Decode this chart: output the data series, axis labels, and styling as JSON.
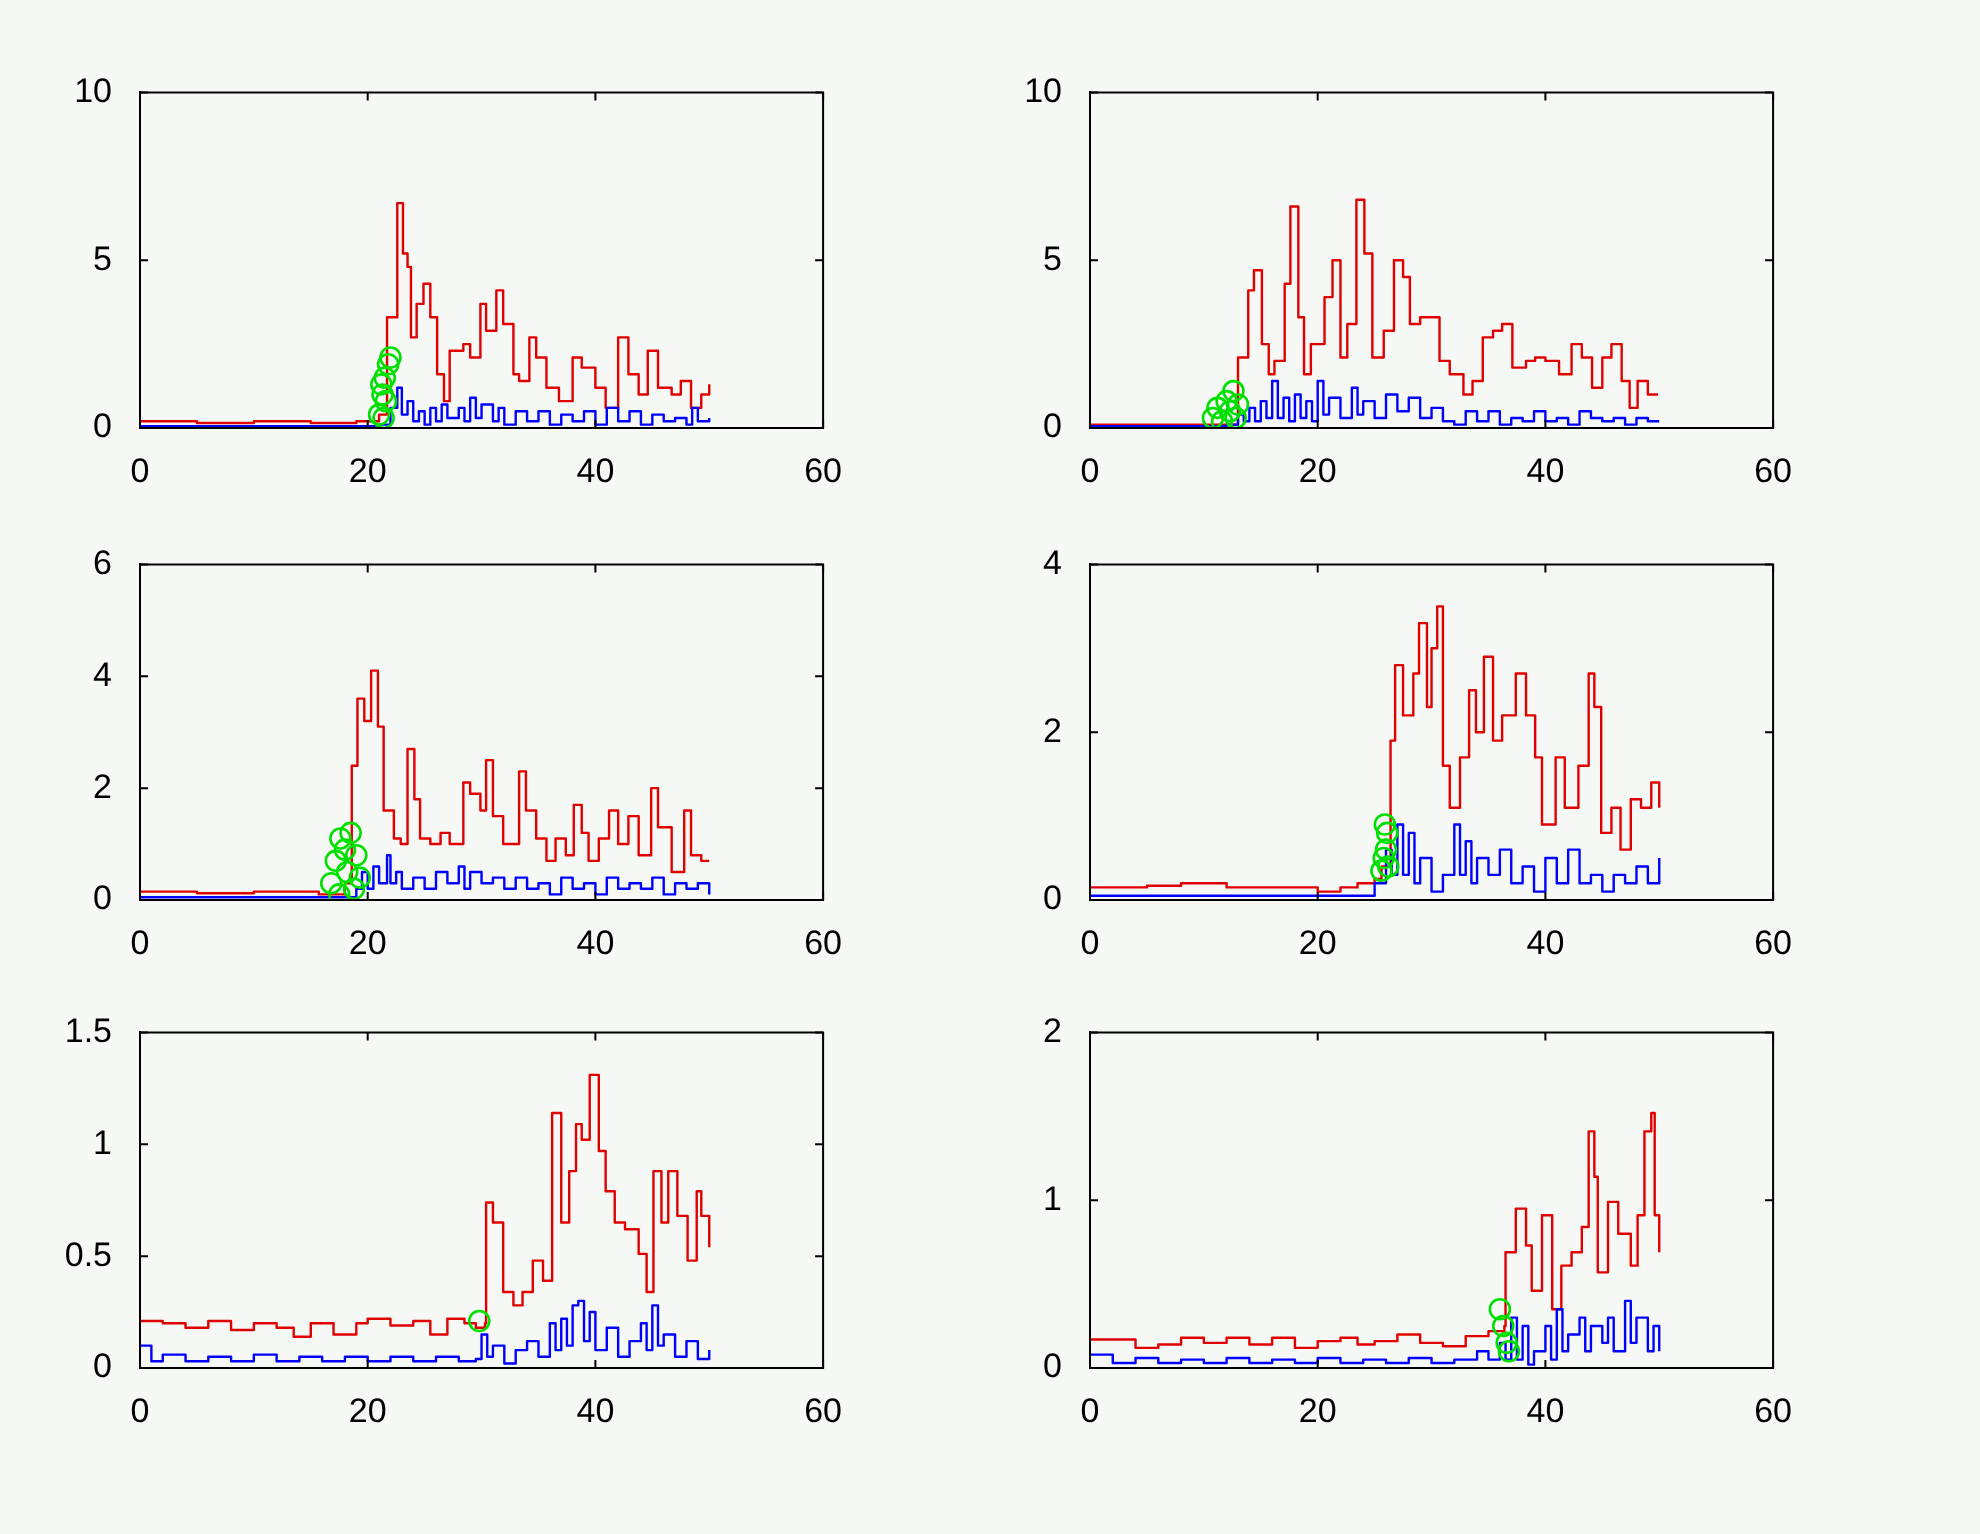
{
  "chart_data": [
    {
      "type": "step",
      "xlim": [
        0,
        60
      ],
      "xticks": [
        0,
        20,
        40,
        60
      ],
      "ylim": [
        0,
        10
      ],
      "yticks": [
        0,
        5,
        10
      ],
      "series": [
        {
          "color": "#e00000",
          "x": [
            0,
            5,
            10,
            15,
            19,
            21,
            21.7,
            22.6,
            23.1,
            23.5,
            23.8,
            24.3,
            24.9,
            25.5,
            26.1,
            26.7,
            27.2,
            28.4,
            29,
            29.9,
            30.4,
            31.3,
            31.9,
            32.8,
            33.3,
            34.2,
            34.8,
            35.7,
            36.8,
            38,
            38.8,
            40,
            40.9,
            42,
            42.9,
            43.8,
            44.6,
            45.5,
            46.7,
            47.5,
            48.4,
            49.3,
            50
          ],
          "values": [
            0.2,
            0.15,
            0.2,
            0.15,
            0.2,
            0.4,
            3.3,
            6.7,
            5.2,
            4.8,
            2.7,
            3.7,
            4.3,
            3.3,
            1.6,
            0.8,
            2.3,
            2.5,
            2.1,
            3.7,
            2.9,
            4.1,
            3.1,
            1.6,
            1.4,
            2.7,
            2.1,
            1.2,
            0.8,
            2.1,
            1.8,
            1.2,
            0.6,
            2.7,
            1.6,
            1,
            2.3,
            1.2,
            1,
            1.4,
            0.6,
            1,
            1.3
          ]
        },
        {
          "color": "#0000ff",
          "x": [
            0,
            5,
            10,
            15,
            20,
            21,
            22,
            22.6,
            23,
            23.5,
            24,
            24.5,
            25,
            25.5,
            26,
            26.5,
            27,
            28,
            28.5,
            29,
            29.5,
            30,
            31,
            31.5,
            32,
            33,
            34,
            35,
            36,
            37,
            38,
            39,
            40,
            41,
            42,
            43,
            44,
            45,
            46,
            47,
            48,
            48.5,
            49,
            50
          ],
          "values": [
            0.05,
            0.05,
            0.05,
            0.05,
            0.05,
            0.1,
            0.6,
            1.2,
            0.4,
            0.8,
            0.2,
            0.5,
            0.1,
            0.6,
            0.2,
            0.7,
            0.3,
            0.6,
            0.2,
            0.9,
            0.3,
            0.7,
            0.2,
            0.6,
            0.1,
            0.5,
            0.2,
            0.5,
            0.1,
            0.4,
            0.2,
            0.5,
            0.1,
            0.6,
            0.2,
            0.5,
            0.1,
            0.4,
            0.2,
            0.3,
            0.1,
            0.6,
            0.2,
            0.3
          ]
        },
        {
          "type": "scatter",
          "marker": "circle",
          "color": "#00e000",
          "x": [
            21,
            21.3,
            21.5,
            21.8,
            22,
            21.2,
            21.6,
            21.4
          ],
          "values": [
            0.4,
            1,
            1.5,
            1.9,
            2.1,
            1.3,
            0.8,
            0.3
          ]
        }
      ]
    },
    {
      "type": "step",
      "xlim": [
        0,
        60
      ],
      "xticks": [
        0,
        20,
        40,
        60
      ],
      "ylim": [
        0,
        10
      ],
      "yticks": [
        0,
        5,
        10
      ],
      "series": [
        {
          "color": "#e00000",
          "x": [
            0,
            6,
            12,
            13,
            13.9,
            14.4,
            15.1,
            15.7,
            16.2,
            17.1,
            17.6,
            18.3,
            18.8,
            19.4,
            20.6,
            21.3,
            22,
            22.6,
            23.4,
            24.1,
            24.8,
            25.8,
            26.7,
            27.5,
            28.1,
            29,
            29.9,
            30.7,
            31.6,
            32.8,
            33.6,
            34.5,
            35.4,
            36.2,
            37.1,
            38.3,
            39.1,
            40,
            41.2,
            42.3,
            43.2,
            44.1,
            45,
            45.8,
            46.7,
            47.4,
            48.1,
            49,
            49.9
          ],
          "values": [
            0.1,
            0.1,
            0.1,
            2.1,
            4.1,
            4.7,
            2.5,
            1.6,
            2,
            4.3,
            6.6,
            3.3,
            1.6,
            2.5,
            3.9,
            5,
            2.1,
            3.1,
            6.8,
            5.2,
            2.1,
            2.9,
            5,
            4.5,
            3.1,
            3.3,
            3.3,
            2,
            1.6,
            1,
            1.4,
            2.7,
            2.9,
            3.1,
            1.8,
            2,
            2.1,
            2,
            1.6,
            2.5,
            2.1,
            1.2,
            2.1,
            2.5,
            1.4,
            0.6,
            1.4,
            1,
            1
          ]
        },
        {
          "color": "#0000ff",
          "x": [
            0,
            6,
            12,
            13,
            13.5,
            14,
            14.5,
            15,
            15.5,
            16,
            16.5,
            17,
            17.5,
            18,
            18.5,
            19,
            19.5,
            20,
            20.5,
            21,
            22,
            23,
            23.5,
            24,
            25,
            26,
            27,
            28,
            29,
            30,
            31,
            32,
            33,
            34,
            35,
            36,
            37,
            38,
            39,
            40,
            41,
            42,
            43,
            44,
            45,
            46,
            47,
            48,
            49,
            50
          ],
          "values": [
            0.05,
            0.05,
            0.1,
            0.4,
            0.2,
            0.6,
            0.2,
            0.8,
            0.3,
            1.4,
            0.3,
            0.9,
            0.2,
            1,
            0.3,
            0.8,
            0.2,
            1.4,
            0.4,
            0.9,
            0.3,
            1.2,
            0.4,
            0.8,
            0.3,
            1,
            0.5,
            0.9,
            0.3,
            0.6,
            0.2,
            0.1,
            0.5,
            0.2,
            0.5,
            0.1,
            0.3,
            0.2,
            0.5,
            0.2,
            0.3,
            0.1,
            0.5,
            0.3,
            0.2,
            0.3,
            0.1,
            0.3,
            0.2,
            0.2
          ]
        },
        {
          "type": "scatter",
          "marker": "circle",
          "color": "#00e000",
          "x": [
            10.8,
            11.2,
            11.6,
            12,
            12.3,
            12.6,
            12.8,
            13
          ],
          "values": [
            0.3,
            0.6,
            0.2,
            0.8,
            0.5,
            1.1,
            0.3,
            0.7
          ]
        }
      ]
    },
    {
      "type": "step",
      "xlim": [
        0,
        60
      ],
      "xticks": [
        0,
        20,
        40,
        60
      ],
      "ylim": [
        0,
        6
      ],
      "yticks": [
        0,
        2,
        4,
        6
      ],
      "series": [
        {
          "color": "#e00000",
          "x": [
            0,
            5,
            10,
            15.7,
            18,
            18.6,
            19.1,
            19.7,
            20.3,
            20.9,
            21.4,
            22.3,
            22.9,
            23.5,
            24.1,
            24.6,
            25.5,
            26.4,
            27.2,
            28.4,
            29,
            29.9,
            30.4,
            31,
            31.9,
            32.8,
            33.3,
            33.9,
            34.8,
            35.7,
            36.5,
            37.4,
            38.1,
            38.8,
            39.4,
            40.3,
            41.2,
            42,
            42.9,
            43.8,
            44.9,
            45.5,
            46.7,
            47.8,
            48.4,
            49.3,
            50
          ],
          "values": [
            0.15,
            0.12,
            0.15,
            0.1,
            0.3,
            2.4,
            3.6,
            3.2,
            4.1,
            3.1,
            1.6,
            1.1,
            1,
            2.7,
            1.8,
            1.1,
            1,
            1.2,
            1,
            2.1,
            1.9,
            1.6,
            2.5,
            1.5,
            1,
            1,
            2.3,
            1.6,
            1.1,
            0.7,
            1.1,
            0.8,
            1.7,
            1.2,
            0.7,
            1.1,
            1.6,
            1,
            1.5,
            0.8,
            2,
            1.3,
            0.5,
            1.6,
            0.8,
            0.7,
            0.7
          ]
        },
        {
          "color": "#0000ff",
          "x": [
            0,
            6,
            12,
            18,
            19,
            19.5,
            20,
            20.5,
            21,
            21.7,
            22,
            22.5,
            23,
            24,
            25,
            26,
            27,
            28,
            28.5,
            29,
            30,
            31,
            32,
            33,
            34,
            35,
            36,
            37,
            38,
            39,
            40,
            41,
            42,
            43,
            44,
            45,
            46,
            47,
            48,
            49,
            50
          ],
          "values": [
            0.05,
            0.05,
            0.05,
            0.05,
            0.2,
            0.5,
            0.2,
            0.6,
            0.3,
            0.8,
            0.3,
            0.5,
            0.2,
            0.4,
            0.2,
            0.5,
            0.3,
            0.6,
            0.2,
            0.5,
            0.3,
            0.4,
            0.2,
            0.4,
            0.2,
            0.3,
            0.1,
            0.4,
            0.2,
            0.3,
            0.1,
            0.4,
            0.2,
            0.3,
            0.2,
            0.4,
            0.1,
            0.3,
            0.2,
            0.3,
            0.1
          ]
        },
        {
          "type": "scatter",
          "marker": "circle",
          "color": "#00e000",
          "x": [
            16.8,
            17.2,
            17.6,
            18,
            18.2,
            18.5,
            18.8,
            19,
            19.3,
            17.5
          ],
          "values": [
            0.3,
            0.7,
            1.1,
            0.9,
            0.5,
            1.2,
            0.2,
            0.8,
            0.4,
            0.1
          ]
        }
      ]
    },
    {
      "type": "step",
      "xlim": [
        0,
        60
      ],
      "xticks": [
        0,
        20,
        40,
        60
      ],
      "ylim": [
        0,
        4
      ],
      "yticks": [
        0,
        2,
        4
      ],
      "series": [
        {
          "color": "#e00000",
          "x": [
            0,
            5,
            8,
            12,
            16,
            20,
            22,
            23.5,
            25,
            25.6,
            26.4,
            26.8,
            27.5,
            28.4,
            28.9,
            29.6,
            30,
            30.5,
            31,
            31.6,
            32.5,
            33.3,
            33.9,
            34.6,
            35.4,
            36.2,
            37.4,
            38.3,
            39.1,
            39.7,
            40.9,
            41.7,
            42.9,
            43.8,
            44.3,
            44.9,
            45.8,
            46.6,
            47.5,
            48.4,
            49.3,
            50
          ],
          "values": [
            0.15,
            0.17,
            0.2,
            0.15,
            0.15,
            0.1,
            0.15,
            0.2,
            0.25,
            0.4,
            1.9,
            2.8,
            2.2,
            2.7,
            3.3,
            2.3,
            3,
            3.5,
            1.6,
            1.1,
            1.7,
            2.5,
            2,
            2.9,
            1.9,
            2.2,
            2.7,
            2.2,
            1.7,
            0.9,
            1.7,
            1.1,
            1.6,
            2.7,
            2.3,
            0.8,
            1.1,
            0.6,
            1.2,
            1.1,
            1.4,
            1.1
          ]
        },
        {
          "color": "#0000ff",
          "x": [
            0,
            8,
            16,
            24,
            25,
            26,
            26.5,
            27,
            27.5,
            28,
            28.5,
            29,
            30,
            31,
            32,
            32.5,
            33,
            33.5,
            34,
            35,
            36,
            37,
            38,
            39,
            40,
            41,
            42,
            43,
            44,
            45,
            46,
            47,
            48,
            49,
            50
          ],
          "values": [
            0.05,
            0.05,
            0.05,
            0.05,
            0.2,
            0.6,
            0.3,
            0.9,
            0.3,
            0.8,
            0.2,
            0.5,
            0.1,
            0.3,
            0.9,
            0.3,
            0.7,
            0.2,
            0.5,
            0.3,
            0.6,
            0.2,
            0.4,
            0.1,
            0.5,
            0.2,
            0.6,
            0.2,
            0.3,
            0.1,
            0.3,
            0.2,
            0.4,
            0.2,
            0.5
          ]
        },
        {
          "type": "scatter",
          "marker": "circle",
          "color": "#00e000",
          "x": [
            25.6,
            25.8,
            26,
            26.1,
            25.9,
            26.2
          ],
          "values": [
            0.35,
            0.5,
            0.6,
            0.8,
            0.9,
            0.4
          ]
        }
      ]
    },
    {
      "type": "step",
      "xlim": [
        0,
        60
      ],
      "xticks": [
        0,
        20,
        40,
        60
      ],
      "ylim": [
        0,
        1.5
      ],
      "yticks": [
        0,
        0.5,
        1,
        1.5
      ],
      "series": [
        {
          "color": "#e00000",
          "x": [
            0,
            2,
            4,
            6,
            8,
            10,
            12,
            13.5,
            15,
            17,
            19,
            20,
            22,
            24,
            25.5,
            27,
            28.5,
            29.5,
            30.3,
            30.4,
            31,
            31.9,
            32.8,
            33.6,
            34.5,
            35.4,
            36.2,
            37,
            37.7,
            38.3,
            38.8,
            39.5,
            40.3,
            40.9,
            41.7,
            42.6,
            43.8,
            44.5,
            45.1,
            45.8,
            46.4,
            47.2,
            48.1,
            48.9,
            49.3,
            50
          ],
          "values": [
            0.21,
            0.2,
            0.18,
            0.21,
            0.17,
            0.2,
            0.18,
            0.14,
            0.2,
            0.15,
            0.2,
            0.22,
            0.19,
            0.21,
            0.15,
            0.22,
            0.2,
            0.18,
            0.2,
            0.74,
            0.65,
            0.34,
            0.28,
            0.34,
            0.48,
            0.39,
            1.14,
            0.65,
            0.88,
            1.09,
            1.02,
            1.31,
            0.97,
            0.79,
            0.65,
            0.62,
            0.51,
            0.34,
            0.88,
            0.65,
            0.88,
            0.68,
            0.48,
            0.79,
            0.68,
            0.54
          ]
        },
        {
          "color": "#0000ff",
          "x": [
            0,
            1,
            2,
            4,
            6,
            8,
            10,
            12,
            14,
            16,
            18,
            20,
            22,
            24,
            26,
            28,
            29.5,
            30,
            30.5,
            31,
            32,
            33,
            34,
            35,
            36,
            36.5,
            37,
            37.5,
            38,
            38.5,
            39,
            39.5,
            40,
            41,
            42,
            43,
            44,
            44.5,
            45,
            45.5,
            46,
            47,
            48,
            49,
            50
          ],
          "values": [
            0.1,
            0.03,
            0.06,
            0.03,
            0.05,
            0.03,
            0.06,
            0.03,
            0.05,
            0.03,
            0.05,
            0.03,
            0.05,
            0.03,
            0.05,
            0.03,
            0.04,
            0.15,
            0.05,
            0.1,
            0.02,
            0.08,
            0.12,
            0.05,
            0.2,
            0.08,
            0.22,
            0.1,
            0.28,
            0.3,
            0.12,
            0.25,
            0.08,
            0.18,
            0.05,
            0.12,
            0.2,
            0.08,
            0.28,
            0.1,
            0.15,
            0.05,
            0.12,
            0.04,
            0.08
          ]
        },
        {
          "type": "scatter",
          "marker": "circle",
          "color": "#00e000",
          "x": [
            29.8
          ],
          "values": [
            0.21
          ]
        }
      ]
    },
    {
      "type": "step",
      "xlim": [
        0,
        60
      ],
      "xticks": [
        0,
        20,
        40,
        60
      ],
      "ylim": [
        0,
        2
      ],
      "yticks": [
        0,
        1,
        2
      ],
      "series": [
        {
          "color": "#e00000",
          "x": [
            0,
            2,
            4,
            6,
            8,
            10,
            12,
            14,
            16,
            18,
            20,
            22,
            23.5,
            25,
            27,
            29,
            31,
            33,
            35,
            36.4,
            36.5,
            37.4,
            38.3,
            38.8,
            39.7,
            40.6,
            41.4,
            42.3,
            43.2,
            43.8,
            44.3,
            44.6,
            45.5,
            46.4,
            47.5,
            48.1,
            48.7,
            49.3,
            49.6,
            50
          ],
          "values": [
            0.17,
            0.17,
            0.12,
            0.14,
            0.18,
            0.15,
            0.18,
            0.14,
            0.18,
            0.12,
            0.16,
            0.18,
            0.14,
            0.16,
            0.2,
            0.15,
            0.13,
            0.19,
            0.22,
            0.25,
            0.69,
            0.95,
            0.73,
            0.46,
            0.91,
            0.35,
            0.61,
            0.69,
            0.84,
            1.41,
            1.14,
            0.57,
            0.99,
            0.8,
            0.61,
            0.91,
            1.41,
            1.52,
            0.91,
            0.69
          ]
        },
        {
          "color": "#0000ff",
          "x": [
            0,
            2,
            4,
            6,
            8,
            10,
            12,
            14,
            16,
            18,
            20,
            22,
            24,
            26,
            28,
            30,
            32,
            34,
            35,
            36,
            36.5,
            37,
            37.5,
            38,
            38.5,
            39,
            40,
            40.5,
            41,
            41.5,
            42,
            43,
            43.5,
            44,
            45,
            45.5,
            46,
            47,
            47.5,
            48,
            49,
            49.5,
            50
          ],
          "values": [
            0.08,
            0.03,
            0.06,
            0.03,
            0.05,
            0.03,
            0.06,
            0.03,
            0.05,
            0.03,
            0.06,
            0.03,
            0.05,
            0.03,
            0.06,
            0.03,
            0.05,
            0.1,
            0.05,
            0.15,
            0.05,
            0.3,
            0.05,
            0.25,
            0.02,
            0.1,
            0.25,
            0.05,
            0.35,
            0.1,
            0.2,
            0.3,
            0.1,
            0.25,
            0.15,
            0.3,
            0.1,
            0.4,
            0.15,
            0.3,
            0.1,
            0.25,
            0.1
          ]
        },
        {
          "type": "scatter",
          "marker": "circle",
          "color": "#00e000",
          "x": [
            36,
            36.3,
            36.6,
            36.8
          ],
          "values": [
            0.35,
            0.25,
            0.15,
            0.1
          ]
        }
      ]
    }
  ]
}
